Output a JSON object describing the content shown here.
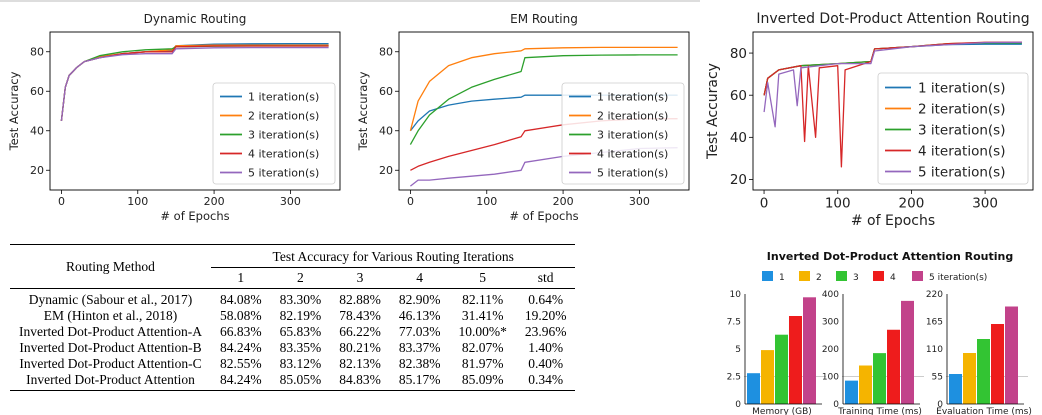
{
  "top_rule_color": "#bbbbbb",
  "chart_data": [
    {
      "type": "line",
      "title": "Dynamic Routing",
      "xlabel": "# of Epochs",
      "ylabel": "Test Accuracy",
      "xlim": [
        -15,
        365
      ],
      "ylim": [
        10,
        90
      ],
      "xticks": [
        0,
        100,
        200,
        300
      ],
      "yticks": [
        20,
        40,
        60,
        80
      ],
      "grid": false,
      "legend": "lower-right",
      "series": [
        {
          "name": "1 iteration(s)",
          "color": "#1f77b4",
          "points": [
            [
              0,
              45
            ],
            [
              5,
              62
            ],
            [
              10,
              68
            ],
            [
              20,
              72
            ],
            [
              30,
              75
            ],
            [
              50,
              77
            ],
            [
              80,
              79
            ],
            [
              110,
              80
            ],
            [
              145,
              80.5
            ],
            [
              150,
              83
            ],
            [
              200,
              83.8
            ],
            [
              250,
              84
            ],
            [
              300,
              84.1
            ],
            [
              350,
              84.1
            ]
          ]
        },
        {
          "name": "2 iteration(s)",
          "color": "#ff7f0e",
          "points": [
            [
              0,
              45
            ],
            [
              5,
              62
            ],
            [
              10,
              68
            ],
            [
              20,
              72
            ],
            [
              30,
              75
            ],
            [
              50,
              77.5
            ],
            [
              80,
              79
            ],
            [
              110,
              80
            ],
            [
              145,
              81
            ],
            [
              150,
              83
            ],
            [
              200,
              83.3
            ],
            [
              250,
              83.3
            ],
            [
              300,
              83.3
            ],
            [
              350,
              83.3
            ]
          ]
        },
        {
          "name": "3 iteration(s)",
          "color": "#2ca02c",
          "points": [
            [
              0,
              45
            ],
            [
              5,
              62
            ],
            [
              10,
              68
            ],
            [
              20,
              72
            ],
            [
              30,
              75
            ],
            [
              50,
              78
            ],
            [
              80,
              80
            ],
            [
              110,
              81
            ],
            [
              145,
              81.5
            ],
            [
              150,
              82.5
            ],
            [
              200,
              82.8
            ],
            [
              250,
              82.9
            ],
            [
              300,
              82.9
            ],
            [
              350,
              82.9
            ]
          ]
        },
        {
          "name": "4 iteration(s)",
          "color": "#d62728",
          "points": [
            [
              0,
              45
            ],
            [
              5,
              62
            ],
            [
              10,
              68
            ],
            [
              20,
              72
            ],
            [
              30,
              75
            ],
            [
              50,
              77
            ],
            [
              80,
              79
            ],
            [
              110,
              80
            ],
            [
              145,
              80
            ],
            [
              150,
              82.5
            ],
            [
              200,
              82.9
            ],
            [
              250,
              82.9
            ],
            [
              300,
              82.9
            ],
            [
              350,
              82.9
            ]
          ]
        },
        {
          "name": "5 iteration(s)",
          "color": "#9467bd",
          "points": [
            [
              0,
              45
            ],
            [
              5,
              62
            ],
            [
              10,
              68
            ],
            [
              20,
              72
            ],
            [
              30,
              75
            ],
            [
              50,
              77
            ],
            [
              80,
              78.5
            ],
            [
              110,
              79
            ],
            [
              145,
              79
            ],
            [
              150,
              81.5
            ],
            [
              200,
              82
            ],
            [
              250,
              82.1
            ],
            [
              300,
              82.1
            ],
            [
              350,
              82.1
            ]
          ]
        }
      ]
    },
    {
      "type": "line",
      "title": "EM Routing",
      "xlabel": "# of Epochs",
      "ylabel": "Test Accuracy",
      "xlim": [
        -15,
        365
      ],
      "ylim": [
        10,
        90
      ],
      "xticks": [
        0,
        100,
        200,
        300
      ],
      "yticks": [
        20,
        40,
        60,
        80
      ],
      "grid": false,
      "legend": "lower-right",
      "series": [
        {
          "name": "1 iteration(s)",
          "color": "#1f77b4",
          "points": [
            [
              0,
              40
            ],
            [
              10,
              45
            ],
            [
              25,
              50
            ],
            [
              50,
              53
            ],
            [
              80,
              55
            ],
            [
              110,
              56
            ],
            [
              145,
              57
            ],
            [
              150,
              58
            ],
            [
              200,
              58
            ],
            [
              250,
              58
            ],
            [
              300,
              58
            ],
            [
              350,
              58
            ]
          ]
        },
        {
          "name": "2 iteration(s)",
          "color": "#ff7f0e",
          "points": [
            [
              0,
              40
            ],
            [
              10,
              55
            ],
            [
              25,
              65
            ],
            [
              50,
              73
            ],
            [
              80,
              77
            ],
            [
              110,
              79
            ],
            [
              145,
              80.5
            ],
            [
              150,
              81.5
            ],
            [
              200,
              82
            ],
            [
              250,
              82.2
            ],
            [
              300,
              82.2
            ],
            [
              350,
              82.2
            ]
          ]
        },
        {
          "name": "3 iteration(s)",
          "color": "#2ca02c",
          "points": [
            [
              0,
              33
            ],
            [
              10,
              40
            ],
            [
              25,
              48
            ],
            [
              50,
              56
            ],
            [
              80,
              62
            ],
            [
              110,
              66
            ],
            [
              145,
              70
            ],
            [
              150,
              77
            ],
            [
              200,
              78
            ],
            [
              250,
              78.3
            ],
            [
              300,
              78.4
            ],
            [
              350,
              78.4
            ]
          ]
        },
        {
          "name": "4 iteration(s)",
          "color": "#d62728",
          "points": [
            [
              0,
              20
            ],
            [
              10,
              22
            ],
            [
              25,
              24
            ],
            [
              50,
              27
            ],
            [
              80,
              30
            ],
            [
              110,
              33
            ],
            [
              145,
              37
            ],
            [
              150,
              40
            ],
            [
              200,
              43
            ],
            [
              250,
              45
            ],
            [
              300,
              46
            ],
            [
              350,
              46.1
            ]
          ]
        },
        {
          "name": "5 iteration(s)",
          "color": "#9467bd",
          "points": [
            [
              0,
              12
            ],
            [
              10,
              15
            ],
            [
              25,
              15
            ],
            [
              50,
              16
            ],
            [
              80,
              17
            ],
            [
              110,
              18
            ],
            [
              145,
              20
            ],
            [
              150,
              24
            ],
            [
              200,
              27
            ],
            [
              250,
              29
            ],
            [
              300,
              31
            ],
            [
              350,
              31.4
            ]
          ]
        }
      ]
    },
    {
      "type": "line",
      "title": "Inverted Dot-Product Attention Routing",
      "xlabel": "# of Epochs",
      "ylabel": "Test Accuracy",
      "xlim": [
        -15,
        365
      ],
      "ylim": [
        15,
        90
      ],
      "xticks": [
        0,
        100,
        200,
        300
      ],
      "yticks": [
        20,
        40,
        60,
        80
      ],
      "grid": false,
      "legend": "lower-right",
      "series": [
        {
          "name": "1 iteration(s)",
          "color": "#1f77b4",
          "points": [
            [
              0,
              60
            ],
            [
              5,
              68
            ],
            [
              20,
              72
            ],
            [
              50,
              74
            ],
            [
              100,
              75
            ],
            [
              145,
              76
            ],
            [
              150,
              82
            ],
            [
              200,
              83
            ],
            [
              250,
              84
            ],
            [
              300,
              84.2
            ],
            [
              350,
              84.2
            ]
          ]
        },
        {
          "name": "2 iteration(s)",
          "color": "#ff7f0e",
          "points": [
            [
              0,
              60
            ],
            [
              5,
              68
            ],
            [
              20,
              72
            ],
            [
              50,
              74
            ],
            [
              100,
              75
            ],
            [
              145,
              76
            ],
            [
              150,
              82
            ],
            [
              200,
              83
            ],
            [
              250,
              84.5
            ],
            [
              300,
              85
            ],
            [
              350,
              85
            ]
          ]
        },
        {
          "name": "3 iteration(s)",
          "color": "#2ca02c",
          "points": [
            [
              0,
              60
            ],
            [
              5,
              68
            ],
            [
              20,
              72
            ],
            [
              50,
              74
            ],
            [
              100,
              75
            ],
            [
              145,
              76
            ],
            [
              150,
              82
            ],
            [
              200,
              83
            ],
            [
              250,
              84.5
            ],
            [
              300,
              84.8
            ],
            [
              350,
              84.8
            ]
          ]
        },
        {
          "name": "4 iteration(s)",
          "color": "#d62728",
          "points": [
            [
              0,
              60
            ],
            [
              5,
              68
            ],
            [
              20,
              72
            ],
            [
              50,
              74
            ],
            [
              55,
              38
            ],
            [
              60,
              74
            ],
            [
              70,
              40
            ],
            [
              75,
              73
            ],
            [
              100,
              74
            ],
            [
              105,
              26
            ],
            [
              110,
              72
            ],
            [
              145,
              76
            ],
            [
              150,
              82
            ],
            [
              200,
              83
            ],
            [
              250,
              84.5
            ],
            [
              300,
              85.1
            ],
            [
              350,
              85.2
            ]
          ]
        },
        {
          "name": "5 iteration(s)",
          "color": "#9467bd",
          "points": [
            [
              0,
              52
            ],
            [
              5,
              66
            ],
            [
              15,
              45
            ],
            [
              20,
              70
            ],
            [
              40,
              72
            ],
            [
              45,
              55
            ],
            [
              50,
              73
            ],
            [
              100,
              75
            ],
            [
              145,
              75
            ],
            [
              150,
              81
            ],
            [
              200,
              83
            ],
            [
              250,
              84
            ],
            [
              300,
              85
            ],
            [
              350,
              85.1
            ]
          ]
        }
      ]
    },
    {
      "type": "bar",
      "title": "Inverted Dot-Product Attention Routing",
      "legend": "top",
      "series": [
        {
          "name": "1",
          "color": "#1e90e0"
        },
        {
          "name": "2",
          "color": "#f5b400"
        },
        {
          "name": "3",
          "color": "#33c433"
        },
        {
          "name": "4",
          "color": "#ee1c1c"
        },
        {
          "name": "5 iteration(s)",
          "color": "#c2428a"
        }
      ],
      "panels": [
        {
          "xlabel": "Memory (GB)",
          "ylim": [
            0,
            10
          ],
          "yticks": [
            "0",
            "2.5",
            "5",
            "7.5",
            "10"
          ],
          "values": [
            2.8,
            4.9,
            6.3,
            8.0,
            9.7
          ]
        },
        {
          "xlabel": "Training Time (ms)",
          "ylim": [
            0,
            400
          ],
          "yticks": [
            "0",
            "100",
            "200",
            "300",
            "400"
          ],
          "values": [
            85,
            140,
            185,
            270,
            375
          ]
        },
        {
          "xlabel": "Evaluation Time (ms)",
          "ylim": [
            0,
            220
          ],
          "yticks": [
            "0",
            "55",
            "110",
            "165",
            "220"
          ],
          "values": [
            60,
            102,
            130,
            160,
            195
          ]
        }
      ]
    }
  ],
  "table": {
    "header_method": "Routing Method",
    "header_group": "Test Accuracy for Various Routing Iterations",
    "columns": [
      "1",
      "2",
      "3",
      "4",
      "5",
      "std"
    ],
    "rows": [
      {
        "method": "Dynamic (Sabour et al., 2017)",
        "cells": [
          "84.08%",
          "83.30%",
          "82.88%",
          "82.90%",
          "82.11%",
          "0.64%"
        ]
      },
      {
        "method": "EM (Hinton et al., 2018)",
        "cells": [
          "58.08%",
          "82.19%",
          "78.43%",
          "46.13%",
          "31.41%",
          "19.20%"
        ]
      },
      {
        "method": "Inverted Dot-Product Attention-A",
        "cells": [
          "66.83%",
          "65.83%",
          "66.22%",
          "77.03%",
          "10.00%*",
          "23.96%"
        ]
      },
      {
        "method": "Inverted Dot-Product Attention-B",
        "cells": [
          "84.24%",
          "83.35%",
          "80.21%",
          "83.37%",
          "82.07%",
          "1.40%"
        ]
      },
      {
        "method": "Inverted Dot-Product Attention-C",
        "cells": [
          "82.55%",
          "83.12%",
          "82.13%",
          "82.38%",
          "81.97%",
          "0.40%"
        ]
      },
      {
        "method": "Inverted Dot-Product Attention",
        "cells": [
          "84.24%",
          "85.05%",
          "84.83%",
          "85.17%",
          "85.09%",
          "0.34%"
        ]
      }
    ]
  }
}
